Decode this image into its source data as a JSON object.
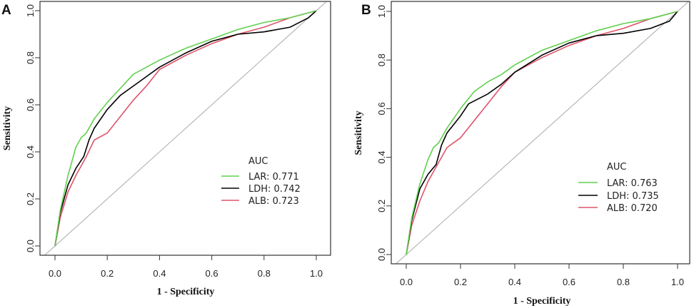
{
  "chart_data": [
    {
      "type": "line",
      "panel_label": "A",
      "xlabel": "1 - Specificity",
      "ylabel": "Sensitivity",
      "xlim": [
        0,
        1
      ],
      "ylim": [
        0,
        1
      ],
      "xticks": [
        "0.0",
        "0.2",
        "0.4",
        "0.6",
        "0.8",
        "1.0"
      ],
      "yticks": [
        "0.0",
        "0.2",
        "0.4",
        "0.6",
        "0.8",
        "1.0"
      ],
      "legend_title": "AUC",
      "legend_placement": "bottom-right",
      "reference_line": "diagonal",
      "series": [
        {
          "name": "LAR",
          "label": "LAR: 0.771",
          "auc": 0.771,
          "color": "#61D04F",
          "x": [
            0,
            0.02,
            0.05,
            0.08,
            0.1,
            0.12,
            0.15,
            0.2,
            0.25,
            0.3,
            0.35,
            0.4,
            0.5,
            0.6,
            0.7,
            0.8,
            0.9,
            1
          ],
          "y": [
            0,
            0.15,
            0.3,
            0.42,
            0.46,
            0.48,
            0.54,
            0.61,
            0.67,
            0.73,
            0.76,
            0.79,
            0.84,
            0.88,
            0.92,
            0.95,
            0.97,
            1
          ]
        },
        {
          "name": "LDH",
          "label": "LDH: 0.742",
          "auc": 0.742,
          "color": "#000000",
          "x": [
            0,
            0.02,
            0.05,
            0.08,
            0.11,
            0.13,
            0.15,
            0.2,
            0.25,
            0.3,
            0.35,
            0.4,
            0.5,
            0.6,
            0.7,
            0.8,
            0.9,
            0.97,
            1
          ],
          "y": [
            0,
            0.14,
            0.26,
            0.33,
            0.38,
            0.45,
            0.5,
            0.58,
            0.64,
            0.68,
            0.72,
            0.76,
            0.82,
            0.87,
            0.9,
            0.91,
            0.93,
            0.97,
            1
          ]
        },
        {
          "name": "ALB",
          "label": "ALB: 0.723",
          "auc": 0.723,
          "color": "#DF536B",
          "x": [
            0,
            0.02,
            0.05,
            0.08,
            0.12,
            0.15,
            0.2,
            0.25,
            0.3,
            0.35,
            0.4,
            0.5,
            0.6,
            0.7,
            0.8,
            0.9,
            1
          ],
          "y": [
            0,
            0.12,
            0.23,
            0.3,
            0.38,
            0.45,
            0.48,
            0.55,
            0.62,
            0.68,
            0.75,
            0.81,
            0.86,
            0.9,
            0.93,
            0.97,
            1
          ]
        }
      ]
    },
    {
      "type": "line",
      "panel_label": "B",
      "xlabel": "1 - Specificity",
      "ylabel": "Sensitivity",
      "xlim": [
        0,
        1
      ],
      "ylim": [
        0,
        1
      ],
      "xticks": [
        "0.0",
        "0.2",
        "0.4",
        "0.6",
        "0.8",
        "1.0"
      ],
      "yticks": [
        "0.0",
        "0.2",
        "0.4",
        "0.6",
        "0.8",
        "1.0"
      ],
      "legend_title": "AUC",
      "legend_placement": "bottom-right",
      "reference_line": "diagonal",
      "series": [
        {
          "name": "LAR",
          "label": "LAR: 0.763",
          "auc": 0.763,
          "color": "#61D04F",
          "x": [
            0,
            0.02,
            0.05,
            0.08,
            0.1,
            0.12,
            0.15,
            0.2,
            0.25,
            0.3,
            0.35,
            0.4,
            0.5,
            0.6,
            0.7,
            0.8,
            0.9,
            1
          ],
          "y": [
            0,
            0.15,
            0.29,
            0.39,
            0.44,
            0.46,
            0.52,
            0.6,
            0.67,
            0.71,
            0.74,
            0.78,
            0.84,
            0.88,
            0.92,
            0.95,
            0.97,
            1
          ]
        },
        {
          "name": "LDH",
          "label": "LDH: 0.735",
          "auc": 0.735,
          "color": "#000000",
          "x": [
            0,
            0.02,
            0.05,
            0.08,
            0.11,
            0.13,
            0.15,
            0.2,
            0.23,
            0.3,
            0.35,
            0.4,
            0.5,
            0.6,
            0.7,
            0.8,
            0.9,
            0.97,
            1
          ],
          "y": [
            0,
            0.14,
            0.27,
            0.33,
            0.37,
            0.45,
            0.5,
            0.57,
            0.62,
            0.66,
            0.7,
            0.75,
            0.82,
            0.87,
            0.9,
            0.91,
            0.93,
            0.96,
            1
          ]
        },
        {
          "name": "ALB",
          "label": "ALB: 0.720",
          "auc": 0.72,
          "color": "#DF536B",
          "x": [
            0,
            0.02,
            0.05,
            0.08,
            0.12,
            0.15,
            0.2,
            0.25,
            0.3,
            0.35,
            0.4,
            0.5,
            0.6,
            0.7,
            0.8,
            0.9,
            1
          ],
          "y": [
            0,
            0.12,
            0.22,
            0.3,
            0.38,
            0.44,
            0.48,
            0.55,
            0.62,
            0.69,
            0.75,
            0.81,
            0.86,
            0.9,
            0.93,
            0.97,
            1
          ]
        }
      ]
    }
  ]
}
